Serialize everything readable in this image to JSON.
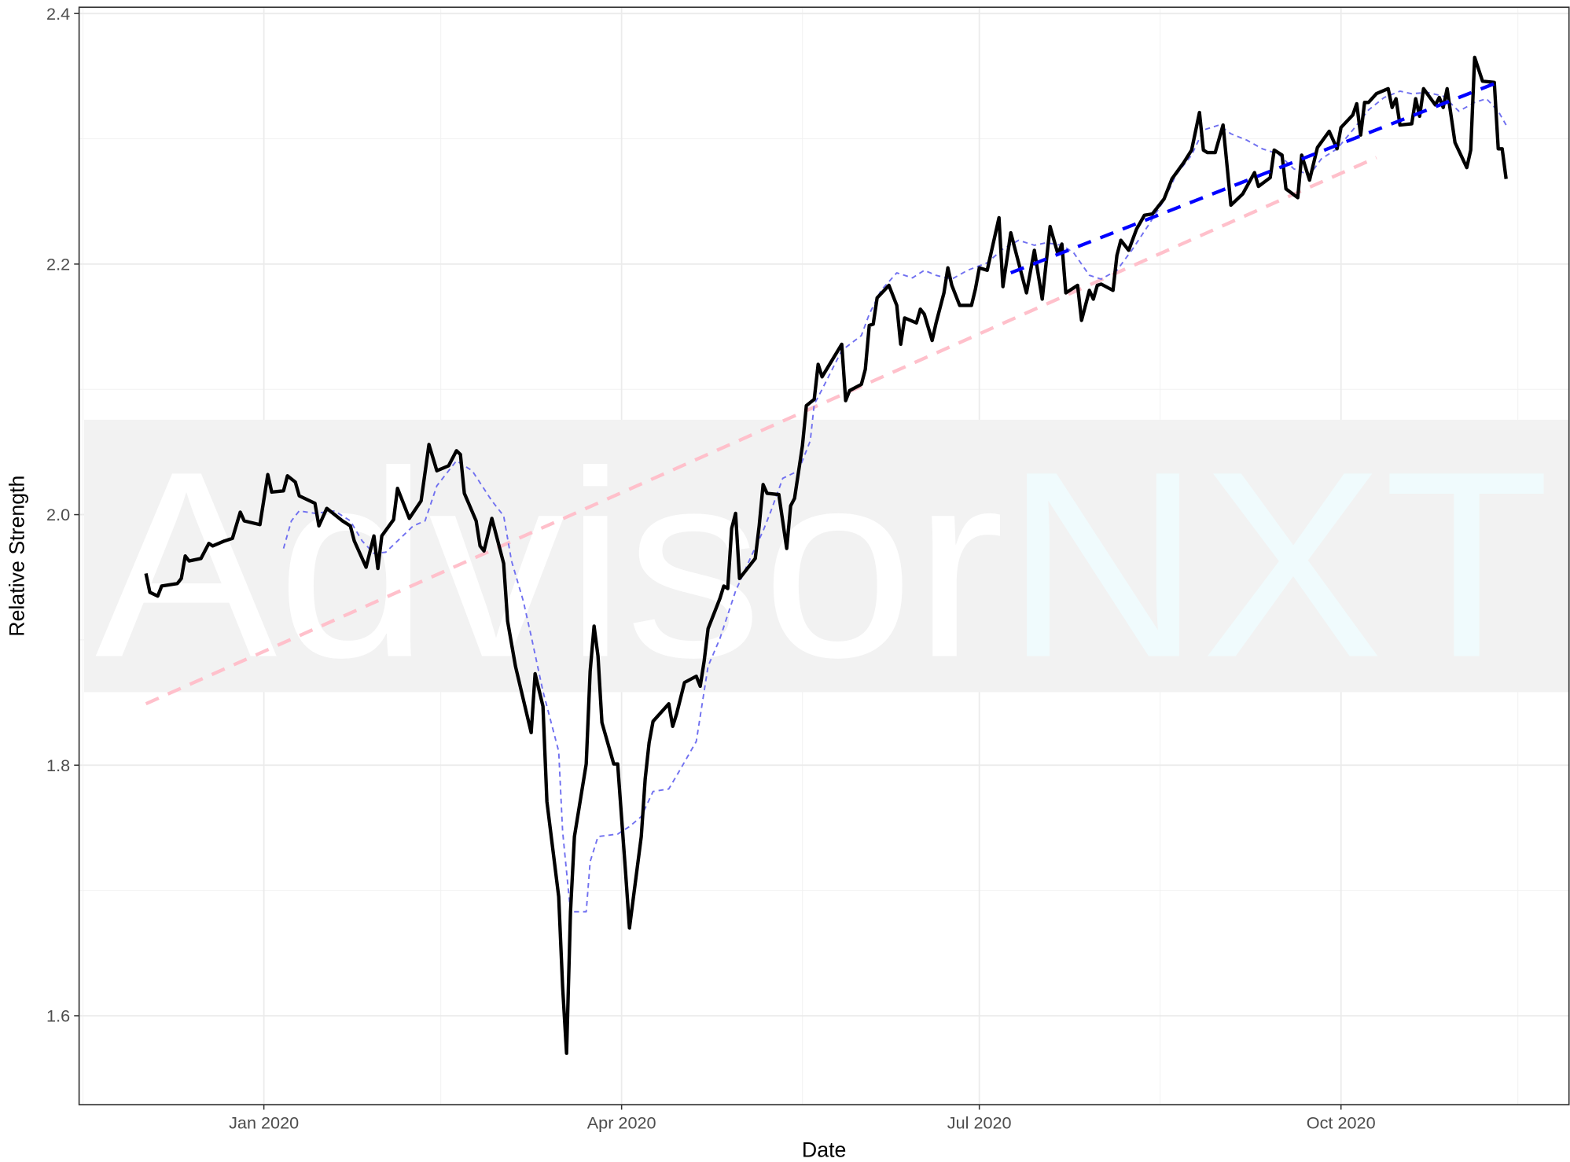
{
  "chart_data": {
    "type": "line",
    "x_label": "Date",
    "y_label": "Relative Strength",
    "watermark": [
      "Advisor",
      "NXT"
    ],
    "xlim": [
      "2019-11-15",
      "2020-11-28"
    ],
    "xticks": [
      {
        "value": "2020-01-01",
        "label": "Jan 2020"
      },
      {
        "value": "2020-04-01",
        "label": "Apr 2020"
      },
      {
        "value": "2020-07-01",
        "label": "Jul 2020"
      },
      {
        "value": "2020-10-01",
        "label": "Oct 2020"
      }
    ],
    "x_minor_ticks": [
      "2019-11-16",
      "2020-02-15",
      "2020-05-17",
      "2020-08-16",
      "2020-11-15"
    ],
    "ylim": [
      1.529,
      2.405
    ],
    "yticks": [
      1.6,
      1.8,
      {
        "value": 2,
        "label": "2.0"
      },
      2.2,
      2.4
    ],
    "y_minor_ticks": [
      1.7,
      1.9,
      2.1,
      2.3
    ],
    "grid": true,
    "series": [
      {
        "color": "#ffc0cb",
        "linetype": "dashed",
        "weight": "thick",
        "x": [
          "2019-12-02",
          "2020-10-10"
        ],
        "values": [
          1.849,
          2.285
        ]
      },
      {
        "color": "#7070f0",
        "linetype": "dotted",
        "weight": "thin",
        "x": [
          "2020-01-06",
          "2020-01-08",
          "2020-01-10",
          "2020-01-14",
          "2020-01-19",
          "2020-01-23",
          "2020-01-26",
          "2020-01-29",
          "2020-02-01",
          "2020-02-04",
          "2020-02-08",
          "2020-02-11",
          "2020-02-14",
          "2020-02-19",
          "2020-02-23",
          "2020-02-28",
          "2020-03-02",
          "2020-03-04",
          "2020-03-07",
          "2020-03-09",
          "2020-03-12",
          "2020-03-16",
          "2020-03-17",
          "2020-03-19",
          "2020-03-23",
          "2020-03-24",
          "2020-03-26",
          "2020-03-31",
          "2020-04-03",
          "2020-04-06",
          "2020-04-09",
          "2020-04-13",
          "2020-04-16",
          "2020-04-20",
          "2020-04-23",
          "2020-04-26",
          "2020-04-30",
          "2020-05-04",
          "2020-05-07",
          "2020-05-09",
          "2020-05-12",
          "2020-05-16",
          "2020-05-19",
          "2020-05-20",
          "2020-05-22",
          "2020-05-27",
          "2020-06-01",
          "2020-06-03",
          "2020-06-06",
          "2020-06-10",
          "2020-06-14",
          "2020-06-17",
          "2020-06-20",
          "2020-06-24",
          "2020-06-28",
          "2020-07-03",
          "2020-07-07",
          "2020-07-11",
          "2020-07-15",
          "2020-07-18",
          "2020-07-22",
          "2020-07-25",
          "2020-07-29",
          "2020-08-01",
          "2020-08-05",
          "2020-08-09",
          "2020-08-13",
          "2020-08-17",
          "2020-08-20",
          "2020-08-24",
          "2020-08-27",
          "2020-08-31",
          "2020-09-03",
          "2020-09-07",
          "2020-09-11",
          "2020-09-15",
          "2020-09-19",
          "2020-09-23",
          "2020-09-26",
          "2020-09-30",
          "2020-10-04",
          "2020-10-08",
          "2020-10-12",
          "2020-10-16",
          "2020-10-19",
          "2020-10-23",
          "2020-10-27",
          "2020-10-31",
          "2020-11-04",
          "2020-11-07",
          "2020-11-10",
          "2020-11-12"
        ],
        "values": [
          1.973,
          1.995,
          2.003,
          2.001,
          2.003,
          1.995,
          1.979,
          1.969,
          1.97,
          1.979,
          1.991,
          1.995,
          2.023,
          2.043,
          2.035,
          2.011,
          1.999,
          1.963,
          1.931,
          1.903,
          1.859,
          1.811,
          1.747,
          1.683,
          1.683,
          1.723,
          1.743,
          1.745,
          1.751,
          1.759,
          1.779,
          1.781,
          1.797,
          1.819,
          1.879,
          1.901,
          1.939,
          1.967,
          1.987,
          2.003,
          2.029,
          2.035,
          2.059,
          2.088,
          2.1,
          2.131,
          2.143,
          2.16,
          2.179,
          2.193,
          2.189,
          2.195,
          2.191,
          2.188,
          2.195,
          2.201,
          2.212,
          2.219,
          2.215,
          2.217,
          2.215,
          2.209,
          2.191,
          2.188,
          2.195,
          2.212,
          2.231,
          2.251,
          2.271,
          2.287,
          2.307,
          2.311,
          2.304,
          2.299,
          2.292,
          2.288,
          2.276,
          2.271,
          2.284,
          2.292,
          2.307,
          2.323,
          2.333,
          2.338,
          2.336,
          2.337,
          2.334,
          2.322,
          2.329,
          2.332,
          2.322,
          2.311
        ]
      },
      {
        "color": "#000000",
        "linetype": "solid",
        "weight": "thick",
        "x": [
          "2019-12-02",
          "2019-12-03",
          "2019-12-05",
          "2019-12-06",
          "2019-12-10",
          "2019-12-11",
          "2019-12-12",
          "2019-12-13",
          "2019-12-16",
          "2019-12-18",
          "2019-12-19",
          "2019-12-22",
          "2019-12-24",
          "2019-12-26",
          "2019-12-27",
          "2019-12-31",
          "2020-01-02",
          "2020-01-03",
          "2020-01-06",
          "2020-01-07",
          "2020-01-09",
          "2020-01-10",
          "2020-01-14",
          "2020-01-15",
          "2020-01-17",
          "2020-01-21",
          "2020-01-23",
          "2020-01-24",
          "2020-01-27",
          "2020-01-29",
          "2020-01-30",
          "2020-01-31",
          "2020-02-03",
          "2020-02-04",
          "2020-02-07",
          "2020-02-10",
          "2020-02-12",
          "2020-02-14",
          "2020-02-17",
          "2020-02-19",
          "2020-02-20",
          "2020-02-21",
          "2020-02-24",
          "2020-02-25",
          "2020-02-26",
          "2020-02-28",
          "2020-03-02",
          "2020-03-03",
          "2020-03-05",
          "2020-03-09",
          "2020-03-10",
          "2020-03-12",
          "2020-03-13",
          "2020-03-16",
          "2020-03-17",
          "2020-03-18",
          "2020-03-19",
          "2020-03-20",
          "2020-03-23",
          "2020-03-24",
          "2020-03-25",
          "2020-03-26",
          "2020-03-27",
          "2020-03-30",
          "2020-03-31",
          "2020-04-02",
          "2020-04-03",
          "2020-04-06",
          "2020-04-07",
          "2020-04-08",
          "2020-04-09",
          "2020-04-13",
          "2020-04-14",
          "2020-04-15",
          "2020-04-17",
          "2020-04-20",
          "2020-04-21",
          "2020-04-22",
          "2020-04-23",
          "2020-04-26",
          "2020-04-27",
          "2020-04-28",
          "2020-04-29",
          "2020-04-30",
          "2020-05-01",
          "2020-05-03",
          "2020-05-05",
          "2020-05-06",
          "2020-05-07",
          "2020-05-08",
          "2020-05-11",
          "2020-05-13",
          "2020-05-14",
          "2020-05-15",
          "2020-05-17",
          "2020-05-18",
          "2020-05-20",
          "2020-05-21",
          "2020-05-22",
          "2020-05-27",
          "2020-05-28",
          "2020-05-29",
          "2020-06-01",
          "2020-06-02",
          "2020-06-03",
          "2020-06-04",
          "2020-06-05",
          "2020-06-08",
          "2020-06-10",
          "2020-06-11",
          "2020-06-12",
          "2020-06-15",
          "2020-06-16",
          "2020-06-17",
          "2020-06-19",
          "2020-06-20",
          "2020-06-22",
          "2020-06-23",
          "2020-06-24",
          "2020-06-26",
          "2020-06-29",
          "2020-06-30",
          "2020-07-01",
          "2020-07-03",
          "2020-07-06",
          "2020-07-07",
          "2020-07-09",
          "2020-07-11",
          "2020-07-13",
          "2020-07-15",
          "2020-07-17",
          "2020-07-19",
          "2020-07-21",
          "2020-07-22",
          "2020-07-23",
          "2020-07-26",
          "2020-07-27",
          "2020-07-29",
          "2020-07-30",
          "2020-07-31",
          "2020-08-01",
          "2020-08-04",
          "2020-08-05",
          "2020-08-06",
          "2020-08-08",
          "2020-08-10",
          "2020-08-12",
          "2020-08-14",
          "2020-08-17",
          "2020-08-19",
          "2020-08-22",
          "2020-08-24",
          "2020-08-26",
          "2020-08-27",
          "2020-08-28",
          "2020-08-30",
          "2020-09-01",
          "2020-09-03",
          "2020-09-06",
          "2020-09-09",
          "2020-09-10",
          "2020-09-13",
          "2020-09-14",
          "2020-09-16",
          "2020-09-17",
          "2020-09-20",
          "2020-09-21",
          "2020-09-23",
          "2020-09-25",
          "2020-09-28",
          "2020-09-30",
          "2020-10-01",
          "2020-10-04",
          "2020-10-05",
          "2020-10-06",
          "2020-10-07",
          "2020-10-08",
          "2020-10-10",
          "2020-10-13",
          "2020-10-14",
          "2020-10-15",
          "2020-10-16",
          "2020-10-19",
          "2020-10-20",
          "2020-10-21",
          "2020-10-22",
          "2020-10-25",
          "2020-10-26",
          "2020-10-27",
          "2020-10-28",
          "2020-10-30",
          "2020-11-02",
          "2020-11-03",
          "2020-11-04",
          "2020-11-06",
          "2020-11-09",
          "2020-11-10",
          "2020-11-11",
          "2020-11-12"
        ],
        "values": [
          1.953,
          1.938,
          1.935,
          1.943,
          1.945,
          1.949,
          1.967,
          1.963,
          1.965,
          1.977,
          1.975,
          1.979,
          1.981,
          2.002,
          1.995,
          1.992,
          2.032,
          2.018,
          2.019,
          2.031,
          2.026,
          2.015,
          2.009,
          1.991,
          2.005,
          1.995,
          1.991,
          1.979,
          1.958,
          1.983,
          1.957,
          1.983,
          1.996,
          2.021,
          1.997,
          2.011,
          2.056,
          2.035,
          2.039,
          2.051,
          2.048,
          2.017,
          1.995,
          1.975,
          1.971,
          1.997,
          1.961,
          1.915,
          1.879,
          1.826,
          1.873,
          1.847,
          1.771,
          1.695,
          1.623,
          1.57,
          1.683,
          1.743,
          1.801,
          1.875,
          1.911,
          1.887,
          1.834,
          1.801,
          1.801,
          1.715,
          1.67,
          1.743,
          1.789,
          1.818,
          1.835,
          1.849,
          1.831,
          1.841,
          1.866,
          1.871,
          1.863,
          1.883,
          1.909,
          1.933,
          1.943,
          1.941,
          1.989,
          2.001,
          1.949,
          1.957,
          1.965,
          1.991,
          2.024,
          2.017,
          2.016,
          1.973,
          2.007,
          2.013,
          2.055,
          2.087,
          2.092,
          2.12,
          2.11,
          2.136,
          2.091,
          2.099,
          2.104,
          2.116,
          2.151,
          2.152,
          2.173,
          2.183,
          2.167,
          2.136,
          2.157,
          2.153,
          2.164,
          2.16,
          2.139,
          2.153,
          2.177,
          2.197,
          2.183,
          2.167,
          2.167,
          2.18,
          2.197,
          2.195,
          2.237,
          2.182,
          2.225,
          2.201,
          2.177,
          2.211,
          2.172,
          2.23,
          2.208,
          2.216,
          2.177,
          2.183,
          2.155,
          2.179,
          2.172,
          2.183,
          2.184,
          2.179,
          2.207,
          2.219,
          2.211,
          2.228,
          2.239,
          2.24,
          2.252,
          2.268,
          2.281,
          2.291,
          2.321,
          2.291,
          2.289,
          2.289,
          2.311,
          2.247,
          2.256,
          2.273,
          2.262,
          2.269,
          2.291,
          2.287,
          2.26,
          2.253,
          2.287,
          2.267,
          2.293,
          2.306,
          2.292,
          2.309,
          2.319,
          2.328,
          2.303,
          2.329,
          2.329,
          2.336,
          2.34,
          2.325,
          2.332,
          2.311,
          2.312,
          2.332,
          2.318,
          2.34,
          2.327,
          2.333,
          2.325,
          2.34,
          2.297,
          2.277,
          2.291,
          2.365,
          2.346,
          2.345,
          2.292,
          2.292,
          2.268
        ]
      },
      {
        "color": "#0000ff",
        "linetype": "dashed",
        "weight": "thick",
        "x": [
          "2020-07-09",
          "2020-11-09"
        ],
        "values": [
          2.193,
          2.344
        ]
      }
    ]
  }
}
